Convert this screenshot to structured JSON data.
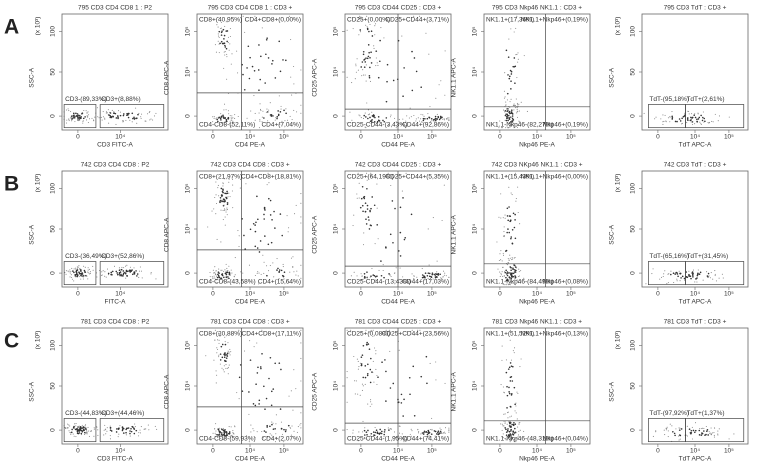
{
  "rows": [
    {
      "label": "A",
      "panels": [
        {
          "title": "795 CD3 CD4 CD8 1 : P2",
          "y_unit": "(x 10³)",
          "y_label": "SSC-A",
          "x_label": "CD3 FITC-A",
          "y_ticks": [
            "100",
            "50",
            "0"
          ],
          "x_ticks": [
            "0",
            "10⁴"
          ],
          "gates": [
            "CD3-(89,33%)",
            "CD3+(8,88%)"
          ]
        },
        {
          "title": "795 CD3 CD4 CD8 1 : CD3 +",
          "y_label": "CD8 APC-A",
          "x_label": "CD4 PE-A",
          "y_ticks": [
            "10⁵",
            "10⁴",
            "0"
          ],
          "x_ticks": [
            "0",
            "10⁴",
            "10⁵"
          ],
          "gates": [
            "CD8+(40,95%)",
            "CD4+CD8+(0,00%)",
            "CD4-CD8-(52,11%)",
            "CD4+(7,04%)"
          ]
        },
        {
          "title": "795 CD3 CD44 CD25 : CD3 +",
          "y_label": "CD25 APC-A",
          "x_label": "CD44 PE-A",
          "y_ticks": [
            "10⁵",
            "10⁴",
            "0"
          ],
          "x_ticks": [
            "0",
            "10⁴",
            "10⁵"
          ],
          "gates": [
            "CD25+(0,00%)",
            "CD25+CD44+(3,71%)",
            "CD25-CD44-(3,43%)",
            "CD44+(92,86%)"
          ]
        },
        {
          "title": "795 CD3 Nkp46 NK1.1 : CD3 +",
          "y_label": "NK1.1 APC-A",
          "x_label": "Nkp46 PE-A",
          "y_ticks": [
            "10⁵",
            "10⁴",
            "0"
          ],
          "x_ticks": [
            "0",
            "10⁴",
            "10⁵"
          ],
          "gates": [
            "NK1.1+(17,36%)",
            "NK1.1+Nkp46+(0,19%)",
            "NK1.1-Nkp46-(82,27%)",
            "Nkp46+(0,19%)"
          ]
        },
        {
          "title": "795 CD3 TdT : CD3 +",
          "y_unit": "(x 10³)",
          "y_label": "SSC-A",
          "x_label": "TdT APC-A",
          "y_ticks": [
            "100",
            "50",
            "0"
          ],
          "x_ticks": [
            "0",
            "10⁴",
            "10⁵"
          ],
          "gates": [
            "TdT-(95,18%)",
            "TdT+(2,61%)"
          ]
        }
      ]
    },
    {
      "label": "B",
      "panels": [
        {
          "title": "742 CD3 CD4 CD8 : P2",
          "y_unit": "(x 10³)",
          "y_label": "SSC-A",
          "x_label": "FITC-A",
          "y_ticks": [
            "100",
            "50",
            "0"
          ],
          "x_ticks": [
            "0",
            "10⁴"
          ],
          "gates": [
            "CD3-(36,49%)",
            "CD3+(52,86%)"
          ]
        },
        {
          "title": "742 CD3 CD4 CD8 : CD3 +",
          "y_label": "CD8 APC-A",
          "x_label": "CD4 PE-A",
          "y_ticks": [
            "10⁵",
            "10⁴",
            "0"
          ],
          "x_ticks": [
            "0",
            "10⁴",
            "10⁵"
          ],
          "gates": [
            "CD8+(21,97%)",
            "CD4+CD8+(18,81%)",
            "CD4-CD8-(43,58%)",
            "CD4+(15,64%)"
          ]
        },
        {
          "title": "742 CD3 CD44 CD25 : CD3 +",
          "y_label": "CD25 APC-A",
          "x_label": "CD44 PE-A",
          "y_ticks": [
            "10⁵",
            "10⁴",
            "0"
          ],
          "x_ticks": [
            "0",
            "10⁴",
            "10⁵"
          ],
          "gates": [
            "CD25+(64,19%)",
            "CD25+CD44+(5,35%)",
            "CD25-CD44-(13,43%)",
            "CD44+(17,03%)"
          ]
        },
        {
          "title": "742 CD3 NKp46 NK1.1 : CD3 +",
          "y_label": "NK1.1 APC-A",
          "x_label": "Nkp46 PE-A",
          "y_ticks": [
            "10⁵",
            "10⁴",
            "0"
          ],
          "x_ticks": [
            "0",
            "10⁴",
            "10⁵"
          ],
          "gates": [
            "NK1.1+(15,43%)",
            "NK1.1+Nkp46+(0,00%)",
            "NK1.1-Nkp46-(84,49%)",
            "Nkp46+(0,08%)"
          ]
        },
        {
          "title": "742 CD3 TdT : CD3 +",
          "y_unit": "(x 10³)",
          "y_label": "SSC-A",
          "x_label": "TdT APC-A",
          "y_ticks": [
            "100",
            "50",
            "0"
          ],
          "x_ticks": [
            "0",
            "10⁴",
            "10⁵"
          ],
          "gates": [
            "TdT-(65,16%)",
            "TdT+(31,45%)"
          ]
        }
      ]
    },
    {
      "label": "C",
      "panels": [
        {
          "title": "781 CD3 CD4 CD8 : P2",
          "y_unit": "(x 10³)",
          "y_label": "SSC-A",
          "x_label": "CD3 FITC-A",
          "y_ticks": [
            "100",
            "50",
            "0"
          ],
          "x_ticks": [
            "0",
            "10⁴"
          ],
          "gates": [
            "CD3-(44,83%)",
            "CD3+(44,46%)"
          ]
        },
        {
          "title": "781 CD3 CD4 CD8 : CD3 +",
          "y_label": "CD8 APC-A",
          "x_label": "CD4 PE-A",
          "y_ticks": [
            "10⁵",
            "10⁴",
            "0"
          ],
          "x_ticks": [
            "0",
            "10⁴",
            "10⁵"
          ],
          "gates": [
            "CD8+(20,88%)",
            "CD4+CD8+(17,11%)",
            "CD4-CD8-(59,93%)",
            "CD4+(2,07%)"
          ]
        },
        {
          "title": "781 CD3 CD44 CD25 : CD3 +",
          "y_label": "CD25 APC-A",
          "x_label": "CD44 PE-A",
          "y_ticks": [
            "10⁵",
            "10⁴",
            "0"
          ],
          "x_ticks": [
            "0",
            "10⁴",
            "10⁵"
          ],
          "gates": [
            "CD25+(0,08%)",
            "CD25+CD44+(23,56%)",
            "CD25-CD44-(1,95%)",
            "CD44+(74,41%)"
          ]
        },
        {
          "title": "781 CD3 Nkp46 NK1.1 : CD3 +",
          "y_label": "NK1.1 APC-A",
          "x_label": "Nkp46 PE-A",
          "y_ticks": [
            "10⁵",
            "10⁴",
            "0"
          ],
          "x_ticks": [
            "0",
            "10⁴",
            "10⁵"
          ],
          "gates": [
            "NK1.1+(51,52%)",
            "NK1.1+Nkp46+(0,13%)",
            "NK1.1-Nkp46-(48,31%)",
            "Nkp46+(0,04%)"
          ]
        },
        {
          "title": "781 CD3 TdT : CD3 +",
          "y_unit": "(x 10³)",
          "y_label": "SSC-A",
          "x_label": "TdT APC-A",
          "y_ticks": [
            "100",
            "50",
            "0"
          ],
          "x_ticks": [
            "0",
            "10⁴",
            "10⁵"
          ],
          "gates": [
            "TdT-(97,92%)",
            "TdT+(1,37%)"
          ]
        }
      ]
    }
  ]
}
